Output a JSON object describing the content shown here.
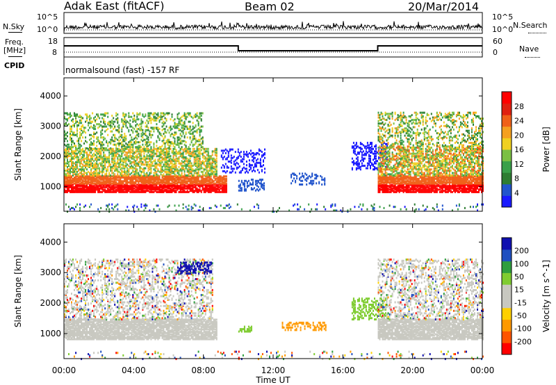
{
  "header": {
    "station": "Adak East (fitACF)",
    "beam": "Beam 02",
    "date": "20/Mar/2014"
  },
  "top_panels": {
    "nsky_label": "N.Sky",
    "nsearch_label": "N.Search",
    "nsky_ticks": [
      "10^5",
      "10^0"
    ],
    "nsearch_ticks": [
      "10^5",
      "10^0"
    ],
    "freq_label_line1": "Freq.",
    "freq_label_line2": "[MHz]",
    "freq_ticks": [
      "18",
      "8"
    ],
    "nave_label": "Nave",
    "nave_ticks": [
      "60",
      "0"
    ],
    "cpid_label": "CPID",
    "cpid_text": "normalsound (fast) -157 RF"
  },
  "colors": {
    "power_scale": [
      "#1a1aff",
      "#2255cc",
      "#2e7d32",
      "#3aa04a",
      "#7bc043",
      "#f0d020",
      "#f5a020",
      "#f06018",
      "#e02010",
      "#ff0000"
    ],
    "velocity_scale": [
      "#ff0000",
      "#ff5500",
      "#ff9900",
      "#ffd000",
      "#c8c8c0",
      "#c8c8c0",
      "#7fcc30",
      "#2e9e3e",
      "#2050c0",
      "#1010b0"
    ]
  },
  "chart_data": [
    {
      "type": "heatmap",
      "title": "",
      "xlabel": "Time UT",
      "ylabel": "Slant Range [km]",
      "xticks": [
        "00:00",
        "04:00",
        "08:00",
        "12:00",
        "16:00",
        "20:00",
        "00:00"
      ],
      "yticks": [
        "1000",
        "2000",
        "3000",
        "4000"
      ],
      "ylim": [
        180,
        4600
      ],
      "colorbar_label": "Power [dB]",
      "colorbar_ticks": [
        "4",
        "8",
        "12",
        "16",
        "20",
        "24",
        "28"
      ],
      "clim": [
        0,
        30
      ]
    },
    {
      "type": "heatmap",
      "title": "",
      "xlabel": "Time UT",
      "ylabel": "Slant Range [km]",
      "xticks": [
        "00:00",
        "04:00",
        "08:00",
        "12:00",
        "16:00",
        "20:00",
        "00:00"
      ],
      "yticks": [
        "1000",
        "2000",
        "3000",
        "4000"
      ],
      "ylim": [
        180,
        4600
      ],
      "colorbar_label": "Velocity [m s^-1]",
      "colorbar_ticks": [
        "200",
        "100",
        "50",
        "15",
        "-15",
        "-50",
        "-100",
        "-200"
      ],
      "clim": [
        -250,
        250
      ]
    }
  ],
  "axis_title": "Time UT"
}
